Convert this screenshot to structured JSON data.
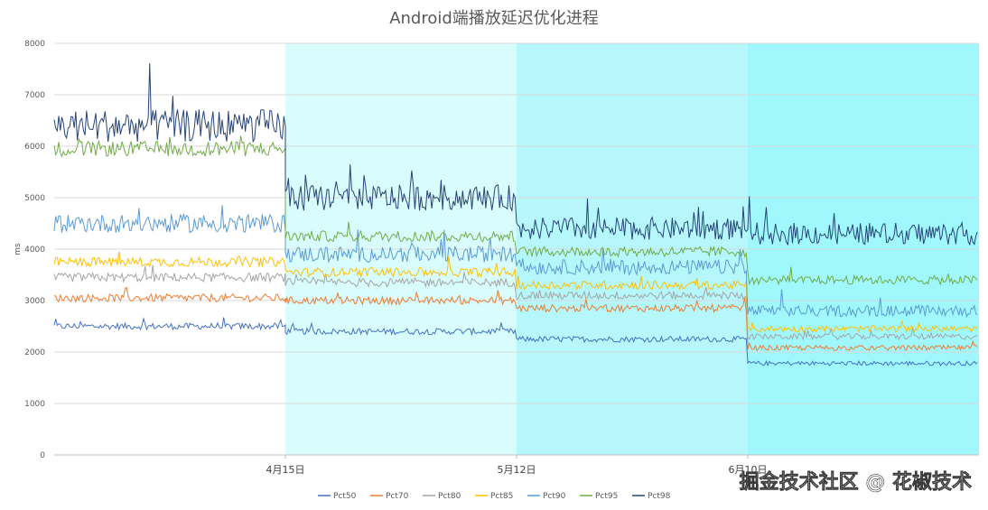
{
  "chart_data": {
    "type": "line",
    "title": "Android端播放延迟优化进程",
    "ylabel": "ms",
    "xlabel": "",
    "ylim": [
      0,
      8000
    ],
    "yticks": [
      0,
      1000,
      2000,
      3000,
      4000,
      5000,
      6000,
      7000,
      8000
    ],
    "x_range_days": [
      0,
      120
    ],
    "x_ticks": [
      {
        "label": "4月15日",
        "day": 30
      },
      {
        "label": "5月12日",
        "day": 60
      },
      {
        "label": "6月10日",
        "day": 90
      }
    ],
    "phase_bands": [
      {
        "from_day": 0,
        "to_day": 30,
        "color": "#ffffff"
      },
      {
        "from_day": 30,
        "to_day": 60,
        "color": "#d9fcfd"
      },
      {
        "from_day": 60,
        "to_day": 90,
        "color": "#b5f7fb"
      },
      {
        "from_day": 90,
        "to_day": 120,
        "color": "#a0f8fd"
      }
    ],
    "grid": true,
    "legend_position": "bottom",
    "series": [
      {
        "name": "Pct50",
        "color": "#4472c4",
        "segments": [
          {
            "from_day": 0,
            "to_day": 30,
            "value": 2500
          },
          {
            "from_day": 30,
            "to_day": 60,
            "value": 2400
          },
          {
            "from_day": 60,
            "to_day": 90,
            "value": 2250
          },
          {
            "from_day": 90,
            "to_day": 120,
            "value": 1780
          }
        ]
      },
      {
        "name": "Pct70",
        "color": "#ed7d31",
        "segments": [
          {
            "from_day": 0,
            "to_day": 30,
            "value": 3050
          },
          {
            "from_day": 30,
            "to_day": 60,
            "value": 3000
          },
          {
            "from_day": 60,
            "to_day": 90,
            "value": 2850
          },
          {
            "from_day": 90,
            "to_day": 120,
            "value": 2080
          }
        ]
      },
      {
        "name": "Pct80",
        "color": "#a5a5a5",
        "segments": [
          {
            "from_day": 0,
            "to_day": 30,
            "value": 3450
          },
          {
            "from_day": 30,
            "to_day": 60,
            "value": 3350
          },
          {
            "from_day": 60,
            "to_day": 90,
            "value": 3100
          },
          {
            "from_day": 90,
            "to_day": 120,
            "value": 2300
          }
        ]
      },
      {
        "name": "Pct85",
        "color": "#ffc000",
        "segments": [
          {
            "from_day": 0,
            "to_day": 30,
            "value": 3750
          },
          {
            "from_day": 30,
            "to_day": 60,
            "value": 3550
          },
          {
            "from_day": 60,
            "to_day": 90,
            "value": 3300
          },
          {
            "from_day": 90,
            "to_day": 120,
            "value": 2450
          }
        ]
      },
      {
        "name": "Pct90",
        "color": "#5b9bd5",
        "segments": [
          {
            "from_day": 0,
            "to_day": 30,
            "value": 4500
          },
          {
            "from_day": 30,
            "to_day": 60,
            "value": 3900
          },
          {
            "from_day": 60,
            "to_day": 90,
            "value": 3650
          },
          {
            "from_day": 90,
            "to_day": 120,
            "value": 2800
          }
        ]
      },
      {
        "name": "Pct95",
        "color": "#70ad47",
        "segments": [
          {
            "from_day": 0,
            "to_day": 30,
            "value": 5950
          },
          {
            "from_day": 30,
            "to_day": 60,
            "value": 4250
          },
          {
            "from_day": 60,
            "to_day": 90,
            "value": 3950
          },
          {
            "from_day": 90,
            "to_day": 120,
            "value": 3400
          }
        ]
      },
      {
        "name": "Pct98",
        "color": "#264478",
        "segments": [
          {
            "from_day": 0,
            "to_day": 30,
            "value": 6400
          },
          {
            "from_day": 30,
            "to_day": 60,
            "value": 5000
          },
          {
            "from_day": 60,
            "to_day": 90,
            "value": 4400
          },
          {
            "from_day": 90,
            "to_day": 120,
            "value": 4300
          }
        ]
      }
    ]
  },
  "watermark": "掘金技术社区 @ 花椒技术"
}
